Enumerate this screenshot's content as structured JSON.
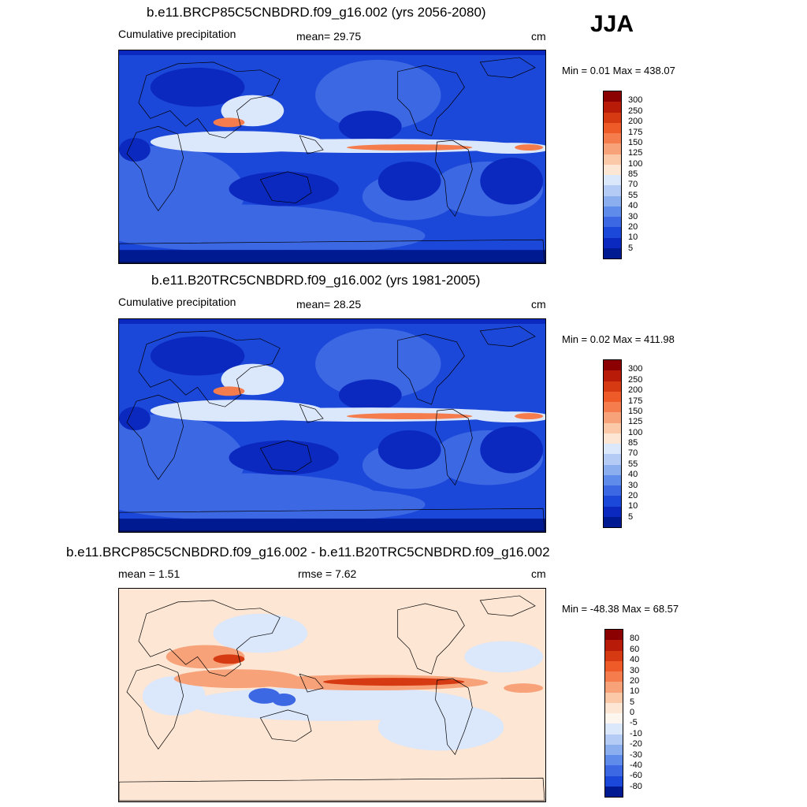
{
  "season": "JJA",
  "panels": [
    {
      "title": "b.e11.BRCP85C5CNBDRD.f09_g16.002 (yrs 2056-2080)",
      "left_label": "Cumulative precipitation",
      "mid_label": "mean=  29.75",
      "units": "cm",
      "minmax": "Min =   0.01 Max = 438.07",
      "colorbar": {
        "labels": [
          "300",
          "250",
          "200",
          "175",
          "150",
          "125",
          "100",
          "85",
          "70",
          "55",
          "40",
          "30",
          "20",
          "10",
          "5"
        ],
        "colors": [
          "#8b0000",
          "#b81c08",
          "#d63a12",
          "#ee5a28",
          "#f57c4c",
          "#f8a27a",
          "#fbc8a8",
          "#fde6d4",
          "#dbe7fb",
          "#b4ccf5",
          "#8aaeee",
          "#5f8cea",
          "#3c68e4",
          "#1c48da",
          "#0b29bf",
          "#001a91"
        ]
      },
      "map_style": "precip"
    },
    {
      "title": "b.e11.B20TRC5CNBDRD.f09_g16.002 (yrs 1981-2005)",
      "left_label": "Cumulative precipitation",
      "mid_label": "mean=  28.25",
      "units": "cm",
      "minmax": "Min =   0.02 Max = 411.98",
      "colorbar": {
        "labels": [
          "300",
          "250",
          "200",
          "175",
          "150",
          "125",
          "100",
          "85",
          "70",
          "55",
          "40",
          "30",
          "20",
          "10",
          "5"
        ],
        "colors": [
          "#8b0000",
          "#b81c08",
          "#d63a12",
          "#ee5a28",
          "#f57c4c",
          "#f8a27a",
          "#fbc8a8",
          "#fde6d4",
          "#dbe7fb",
          "#b4ccf5",
          "#8aaeee",
          "#5f8cea",
          "#3c68e4",
          "#1c48da",
          "#0b29bf",
          "#001a91"
        ]
      },
      "map_style": "precip"
    },
    {
      "title": "b.e11.BRCP85C5CNBDRD.f09_g16.002 - b.e11.B20TRC5CNBDRD.f09_g16.002",
      "left_label": "mean =   1.51",
      "mid_label": "rmse =   7.62",
      "units": "cm",
      "minmax": "Min = -48.38 Max =  68.57",
      "colorbar": {
        "labels": [
          "80",
          "60",
          "40",
          "30",
          "20",
          "10",
          "5",
          "0",
          "-5",
          "-10",
          "-20",
          "-30",
          "-40",
          "-60",
          "-80"
        ],
        "colors": [
          "#8b0000",
          "#b81c08",
          "#d63a12",
          "#ee5a28",
          "#f57c4c",
          "#f8a27a",
          "#fbc8a8",
          "#fde6d4",
          "#fdf6ee",
          "#dbe7fb",
          "#b4ccf5",
          "#8aaeee",
          "#5f8cea",
          "#3c68e4",
          "#1c48da",
          "#001a91"
        ]
      },
      "map_style": "diff"
    }
  ]
}
